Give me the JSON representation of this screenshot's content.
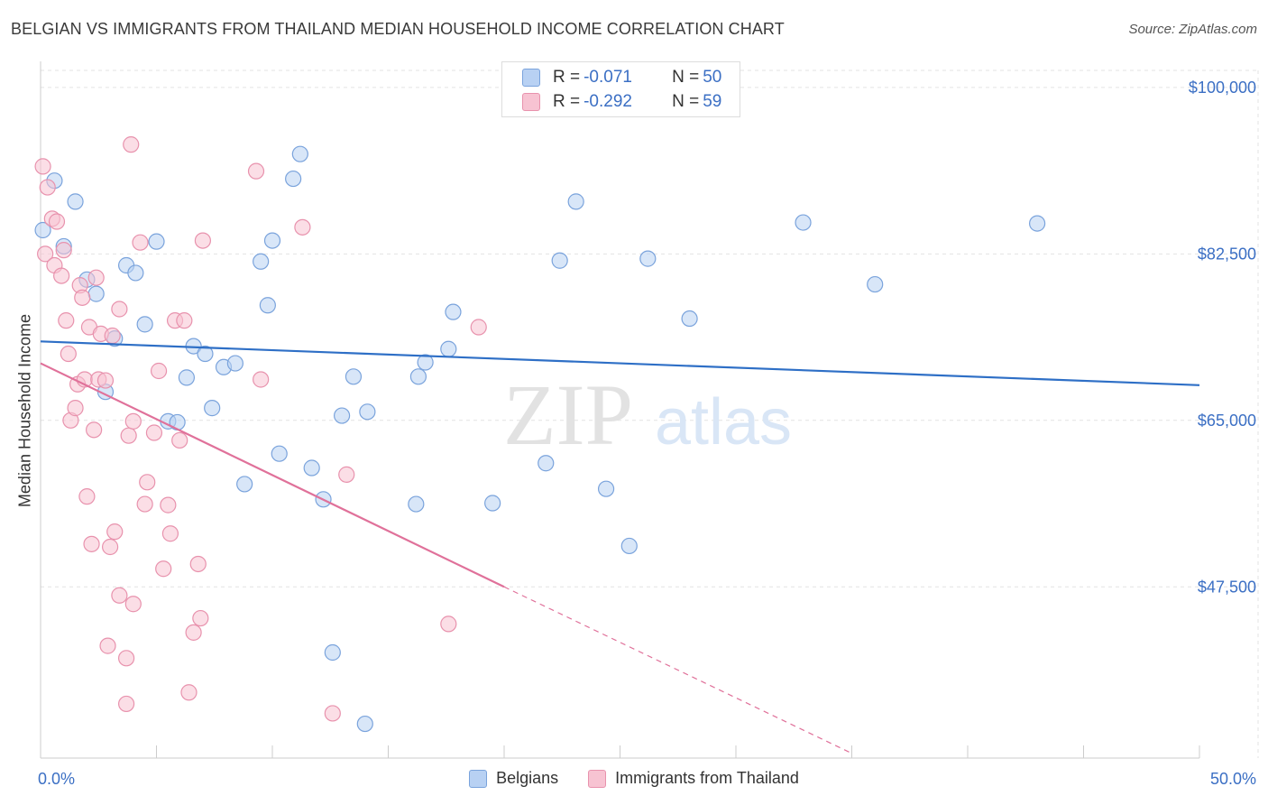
{
  "title": "BELGIAN VS IMMIGRANTS FROM THAILAND MEDIAN HOUSEHOLD INCOME CORRELATION CHART",
  "source": "Source: ZipAtlas.com",
  "watermark": {
    "zip": "ZIP",
    "atlas": "atlas"
  },
  "legend": {
    "rows": [
      {
        "r_label": "R = ",
        "r_value": "-0.071",
        "n_label": "N = ",
        "n_value": "50"
      },
      {
        "r_label": "R = ",
        "r_value": "-0.292",
        "n_label": "N = ",
        "n_value": "59"
      }
    ]
  },
  "bottom_legend": [
    "Belgians",
    "Immigrants from Thailand"
  ],
  "colors": {
    "belgians_fill": "#b8d1f3",
    "belgians_stroke": "#7aa3dc",
    "belgians_line": "#2e6fc6",
    "thai_fill": "#f7c3d2",
    "thai_stroke": "#e892ad",
    "thai_line": "#e0719a",
    "grid": "#e3e3e3",
    "axis": "#cccccc",
    "tick_label": "#3b6fc4"
  },
  "chart_data": {
    "type": "scatter",
    "title": "BELGIAN VS IMMIGRANTS FROM THAILAND MEDIAN HOUSEHOLD INCOME CORRELATION CHART",
    "xlabel": "",
    "ylabel": "Median Household Income",
    "xlim": [
      0,
      50
    ],
    "ylim": [
      29500,
      103500
    ],
    "x_tick_labels": [
      "0.0%",
      "50.0%"
    ],
    "y_ticks": [
      47500,
      65000,
      82500,
      100000
    ],
    "y_tick_labels": [
      "$47,500",
      "$65,000",
      "$82,500",
      "$100,000"
    ],
    "grid": true,
    "legend_position": "top-center",
    "series": [
      {
        "name": "Belgians",
        "R": -0.071,
        "N": 50,
        "trend": {
          "x": [
            0,
            50
          ],
          "y": [
            73300,
            68700
          ]
        },
        "points": [
          [
            0.1,
            85000
          ],
          [
            0.6,
            90200
          ],
          [
            1.0,
            83300
          ],
          [
            1.5,
            88000
          ],
          [
            2.0,
            79800
          ],
          [
            2.4,
            78300
          ],
          [
            3.2,
            73600
          ],
          [
            2.8,
            68000
          ],
          [
            3.7,
            81300
          ],
          [
            4.1,
            80500
          ],
          [
            4.5,
            75100
          ],
          [
            5.0,
            83800
          ],
          [
            5.5,
            64900
          ],
          [
            5.9,
            64800
          ],
          [
            6.3,
            69500
          ],
          [
            6.6,
            72800
          ],
          [
            7.1,
            72000
          ],
          [
            7.4,
            66300
          ],
          [
            7.9,
            70600
          ],
          [
            8.4,
            71000
          ],
          [
            8.8,
            58300
          ],
          [
            9.5,
            81700
          ],
          [
            9.8,
            77100
          ],
          [
            10.0,
            83900
          ],
          [
            10.3,
            61500
          ],
          [
            10.9,
            90400
          ],
          [
            11.2,
            93000
          ],
          [
            11.7,
            60000
          ],
          [
            12.2,
            56700
          ],
          [
            12.6,
            40600
          ],
          [
            13.0,
            65500
          ],
          [
            13.5,
            69600
          ],
          [
            14.1,
            65900
          ],
          [
            14.0,
            33100
          ],
          [
            16.2,
            56200
          ],
          [
            16.3,
            69600
          ],
          [
            16.6,
            71100
          ],
          [
            17.6,
            72500
          ],
          [
            17.8,
            76400
          ],
          [
            19.5,
            56300
          ],
          [
            21.8,
            60500
          ],
          [
            22.4,
            81800
          ],
          [
            23.1,
            88000
          ],
          [
            24.4,
            57800
          ],
          [
            25.4,
            51800
          ],
          [
            26.2,
            82000
          ],
          [
            28.0,
            75700
          ],
          [
            32.9,
            85800
          ],
          [
            36.0,
            79300
          ],
          [
            43.0,
            85700
          ]
        ]
      },
      {
        "name": "Immigrants from Thailand",
        "R": -0.292,
        "N": 59,
        "trend": {
          "x": [
            0,
            20
          ],
          "y": [
            71000,
            47500
          ]
        },
        "trend_extension": {
          "x": [
            20,
            35
          ],
          "y": [
            47500,
            30000
          ]
        },
        "points": [
          [
            0.1,
            91700
          ],
          [
            0.3,
            89500
          ],
          [
            0.5,
            86200
          ],
          [
            0.7,
            85900
          ],
          [
            0.2,
            82500
          ],
          [
            0.6,
            81300
          ],
          [
            0.9,
            80200
          ],
          [
            1.0,
            82900
          ],
          [
            1.1,
            75500
          ],
          [
            1.2,
            72000
          ],
          [
            1.3,
            65000
          ],
          [
            1.5,
            66300
          ],
          [
            1.6,
            68800
          ],
          [
            1.7,
            79200
          ],
          [
            1.8,
            77900
          ],
          [
            1.9,
            69300
          ],
          [
            2.0,
            57000
          ],
          [
            2.1,
            74800
          ],
          [
            2.2,
            52000
          ],
          [
            2.3,
            64000
          ],
          [
            2.4,
            80000
          ],
          [
            2.5,
            69300
          ],
          [
            2.6,
            74100
          ],
          [
            2.8,
            69200
          ],
          [
            2.9,
            41300
          ],
          [
            3.0,
            51700
          ],
          [
            3.1,
            73900
          ],
          [
            3.2,
            53300
          ],
          [
            3.4,
            46600
          ],
          [
            3.4,
            76700
          ],
          [
            3.7,
            35200
          ],
          [
            3.7,
            40000
          ],
          [
            3.8,
            63400
          ],
          [
            3.9,
            94000
          ],
          [
            4.0,
            64900
          ],
          [
            4.0,
            45700
          ],
          [
            4.3,
            83700
          ],
          [
            4.5,
            56200
          ],
          [
            4.6,
            58500
          ],
          [
            4.9,
            63700
          ],
          [
            5.1,
            70200
          ],
          [
            5.3,
            49400
          ],
          [
            5.5,
            56100
          ],
          [
            5.6,
            53100
          ],
          [
            5.8,
            75500
          ],
          [
            6.0,
            62900
          ],
          [
            6.2,
            75500
          ],
          [
            6.4,
            36400
          ],
          [
            6.6,
            42700
          ],
          [
            6.8,
            49900
          ],
          [
            6.9,
            44200
          ],
          [
            7.0,
            83900
          ],
          [
            9.3,
            91200
          ],
          [
            9.5,
            69300
          ],
          [
            11.3,
            85300
          ],
          [
            12.6,
            34200
          ],
          [
            13.2,
            59300
          ],
          [
            17.6,
            43600
          ],
          [
            18.9,
            74800
          ]
        ]
      }
    ]
  }
}
